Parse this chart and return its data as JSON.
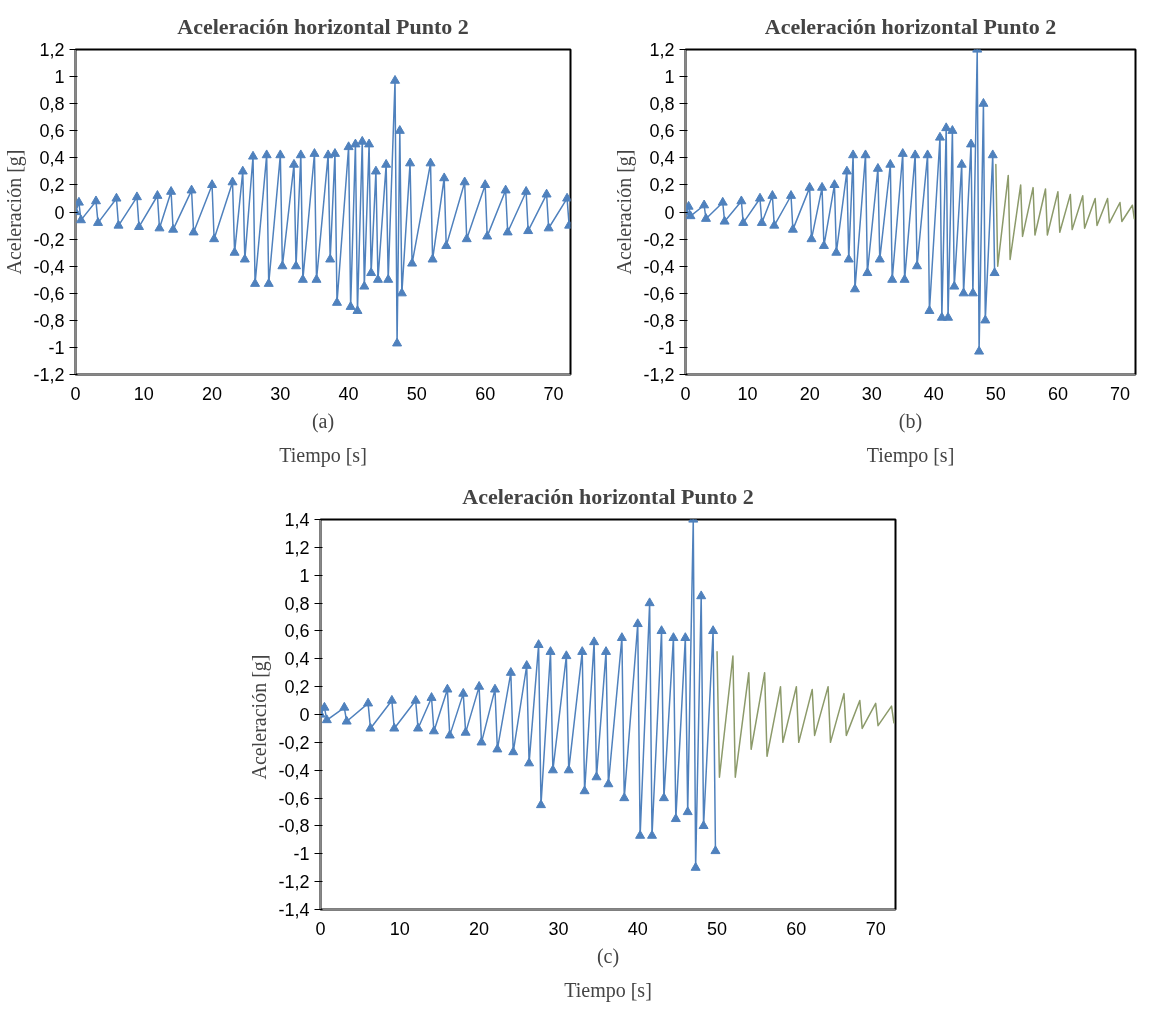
{
  "chart_data": [
    {
      "type": "line",
      "title": "Aceleración horizontal Punto 2",
      "xlabel": "Tiempo [s]",
      "ylabel": "Aceleración [g]",
      "annotations": [
        "(a)"
      ],
      "xlim": [
        0,
        72.5
      ],
      "ylim": [
        -1.2,
        1.2
      ],
      "xticks": [
        0,
        10,
        20,
        30,
        40,
        50,
        60,
        70
      ],
      "yticks": [
        {
          "value": -1.2,
          "label": "-1,2"
        },
        {
          "value": -1,
          "label": "-1"
        },
        {
          "value": -0.8,
          "label": "-0,8"
        },
        {
          "value": -0.6,
          "label": "-0,6"
        },
        {
          "value": -0.4,
          "label": "-0,4"
        },
        {
          "value": -0.2,
          "label": "-0,2"
        },
        0,
        {
          "value": 0.2,
          "label": "0,2"
        },
        {
          "value": 0.4,
          "label": "0,4"
        },
        {
          "value": 0.6,
          "label": "0,6"
        },
        {
          "value": 0.8,
          "label": "0,8"
        },
        1,
        {
          "value": 1.2,
          "label": "1,2"
        }
      ],
      "marker": "triangle",
      "series": [
        {
          "color": "#4f81bd",
          "x": [
            0,
            0.5,
            0.8,
            3,
            3.3,
            6,
            6.3,
            9,
            9.3,
            12,
            12.3,
            14,
            14.3,
            17,
            17.3,
            20,
            20.3,
            23,
            23.3,
            24.5,
            24.8,
            26,
            26.3,
            28,
            28.3,
            30,
            30.3,
            32,
            32.3,
            33,
            33.3,
            35,
            35.3,
            37,
            37.3,
            38,
            38.3,
            40,
            40.3,
            41,
            41.3,
            42,
            42.3,
            43,
            43.3,
            44,
            44.3,
            45.5,
            45.8,
            46.8,
            47.1,
            47.5,
            47.8,
            49,
            49.3,
            52,
            52.3,
            54,
            54.3,
            57,
            57.3,
            60,
            60.3,
            63,
            63.3,
            66,
            66.3,
            69,
            69.3,
            72,
            72.3
          ],
          "values": [
            0,
            0.07,
            -0.06,
            0.08,
            -0.08,
            0.1,
            -0.1,
            0.11,
            -0.11,
            0.12,
            -0.12,
            0.15,
            -0.13,
            0.16,
            -0.15,
            0.2,
            -0.2,
            0.22,
            -0.3,
            0.3,
            -0.35,
            0.41,
            -0.53,
            0.42,
            -0.53,
            0.42,
            -0.4,
            0.35,
            -0.4,
            0.42,
            -0.5,
            0.43,
            -0.5,
            0.42,
            -0.35,
            0.43,
            -0.67,
            0.48,
            -0.7,
            0.5,
            -0.73,
            0.52,
            -0.55,
            0.5,
            -0.45,
            0.3,
            -0.5,
            0.35,
            -0.5,
            0.97,
            -0.97,
            0.6,
            -0.6,
            0.36,
            -0.38,
            0.36,
            -0.35,
            0.25,
            -0.25,
            0.22,
            -0.2,
            0.2,
            -0.18,
            0.16,
            -0.15,
            0.15,
            -0.14,
            0.13,
            -0.12,
            0.1,
            -0.1
          ]
        }
      ]
    },
    {
      "type": "line",
      "title": "Aceleración horizontal Punto 2",
      "xlabel": "Tiempo [s]",
      "ylabel": "Aceleración [g]",
      "annotations": [
        "(b)"
      ],
      "xlim": [
        0,
        72.5
      ],
      "ylim": [
        -1.2,
        1.2
      ],
      "xticks": [
        0,
        10,
        20,
        30,
        40,
        50,
        60,
        70
      ],
      "yticks": [
        {
          "value": -1.2,
          "label": "-1,2"
        },
        {
          "value": -1,
          "label": "-1"
        },
        {
          "value": -0.8,
          "label": "-0,8"
        },
        {
          "value": -0.6,
          "label": "-0,6"
        },
        {
          "value": -0.4,
          "label": "-0,4"
        },
        {
          "value": -0.2,
          "label": "-0,2"
        },
        0,
        {
          "value": 0.2,
          "label": "0,2"
        },
        {
          "value": 0.4,
          "label": "0,4"
        },
        {
          "value": 0.6,
          "label": "0,6"
        },
        {
          "value": 0.8,
          "label": "0,8"
        },
        1,
        {
          "value": 1.2,
          "label": "1,2"
        }
      ],
      "marker": "triangle",
      "series": [
        {
          "color": "#4f81bd",
          "x": [
            0,
            0.5,
            0.8,
            3,
            3.3,
            6,
            6.3,
            9,
            9.3,
            12,
            12.3,
            14,
            14.3,
            17,
            17.3,
            20,
            20.3,
            22,
            22.3,
            24,
            24.3,
            26,
            26.3,
            27,
            27.3,
            29,
            29.3,
            31,
            31.3,
            33,
            33.3,
            35,
            35.3,
            37,
            37.3,
            39,
            39.3,
            41,
            41.3,
            42,
            42.3,
            43,
            43.3,
            44.5,
            44.8,
            46,
            46.3,
            47,
            47.3,
            48,
            48.3,
            49.5,
            49.8
          ],
          "values": [
            0,
            0.04,
            -0.03,
            0.05,
            -0.05,
            0.07,
            -0.07,
            0.08,
            -0.08,
            0.1,
            -0.08,
            0.12,
            -0.1,
            0.12,
            -0.13,
            0.18,
            -0.2,
            0.18,
            -0.25,
            0.2,
            -0.3,
            0.3,
            -0.35,
            0.42,
            -0.57,
            0.42,
            -0.45,
            0.32,
            -0.35,
            0.35,
            -0.5,
            0.43,
            -0.5,
            0.42,
            -0.4,
            0.42,
            -0.73,
            0.55,
            -0.78,
            0.62,
            -0.78,
            0.6,
            -0.55,
            0.35,
            -0.6,
            0.5,
            -0.6,
            1.2,
            -1.03,
            0.8,
            -0.8,
            0.42,
            -0.45
          ]
        },
        {
          "color": "#8c9a6a",
          "marker": "none",
          "x": [
            50,
            50.3,
            52,
            52.3,
            54,
            54.3,
            56,
            56.3,
            58,
            58.3,
            60,
            60.3,
            62,
            62.3,
            64,
            64.3,
            66,
            66.3,
            68,
            68.3,
            70,
            70.3,
            72,
            72.3
          ],
          "values": [
            0.35,
            -0.4,
            0.27,
            -0.35,
            0.2,
            -0.18,
            0.18,
            -0.17,
            0.17,
            -0.17,
            0.15,
            -0.15,
            0.13,
            -0.13,
            0.12,
            -0.12,
            0.1,
            -0.1,
            0.1,
            -0.08,
            0.07,
            -0.07,
            0.05,
            -0.05
          ]
        }
      ]
    },
    {
      "type": "line",
      "title": "Aceleración horizontal Punto 2",
      "xlabel": "Tiempo [s]",
      "ylabel": "Aceleración  [g]",
      "annotations": [
        "(c)"
      ],
      "xlim": [
        0,
        72.5
      ],
      "ylim": [
        -1.4,
        1.4
      ],
      "xticks": [
        0,
        10,
        20,
        30,
        40,
        50,
        60,
        70
      ],
      "yticks": [
        {
          "value": -1.4,
          "label": "-1,4"
        },
        {
          "value": -1.2,
          "label": "-1,2"
        },
        {
          "value": -1,
          "label": "-1"
        },
        {
          "value": -0.8,
          "label": "-0,8"
        },
        {
          "value": -0.6,
          "label": "-0,6"
        },
        {
          "value": -0.4,
          "label": "-0,4"
        },
        {
          "value": -0.2,
          "label": "-0,2"
        },
        0,
        {
          "value": 0.2,
          "label": "0,2"
        },
        {
          "value": 0.4,
          "label": "0,4"
        },
        {
          "value": 0.6,
          "label": "0,6"
        },
        {
          "value": 0.8,
          "label": "0,8"
        },
        1,
        {
          "value": 1.2,
          "label": "1,2"
        },
        {
          "value": 1.4,
          "label": "1,4"
        }
      ],
      "marker": "triangle",
      "series": [
        {
          "color": "#4f81bd",
          "x": [
            0,
            0.5,
            0.8,
            3,
            3.3,
            6,
            6.3,
            9,
            9.3,
            12,
            12.3,
            14,
            14.3,
            16,
            16.3,
            18,
            18.3,
            20,
            20.3,
            22,
            22.3,
            24,
            24.3,
            26,
            26.3,
            27.5,
            27.8,
            29,
            29.3,
            31,
            31.3,
            33,
            33.3,
            34.5,
            34.8,
            36,
            36.3,
            38,
            38.3,
            40,
            40.3,
            41.5,
            41.8,
            43,
            43.3,
            44.5,
            44.8,
            46,
            46.3,
            47,
            47.3,
            48,
            48.3,
            49.5,
            49.8
          ],
          "values": [
            0,
            0.05,
            -0.04,
            0.05,
            -0.05,
            0.08,
            -0.1,
            0.1,
            -0.1,
            0.1,
            -0.1,
            0.12,
            -0.12,
            0.18,
            -0.15,
            0.15,
            -0.13,
            0.2,
            -0.2,
            0.18,
            -0.25,
            0.3,
            -0.27,
            0.35,
            -0.35,
            0.5,
            -0.65,
            0.45,
            -0.4,
            0.42,
            -0.4,
            0.45,
            -0.55,
            0.52,
            -0.45,
            0.45,
            -0.5,
            0.55,
            -0.6,
            0.65,
            -0.87,
            0.8,
            -0.87,
            0.6,
            -0.6,
            0.55,
            -0.75,
            0.55,
            -0.7,
            1.4,
            -1.1,
            0.85,
            -0.8,
            0.6,
            -0.98
          ]
        },
        {
          "color": "#8c9a6a",
          "marker": "none",
          "x": [
            50,
            50.3,
            52,
            52.3,
            54,
            54.3,
            56,
            56.3,
            58,
            58.3,
            60,
            60.3,
            62,
            62.3,
            64,
            64.3,
            66,
            66.3,
            68,
            68.3,
            70,
            70.3,
            72,
            72.3
          ],
          "values": [
            0.45,
            -0.45,
            0.42,
            -0.45,
            0.3,
            -0.25,
            0.3,
            -0.3,
            0.2,
            -0.2,
            0.2,
            -0.2,
            0.18,
            -0.15,
            0.2,
            -0.2,
            0.15,
            -0.15,
            0.1,
            -0.1,
            0.08,
            -0.08,
            0.06,
            -0.06
          ]
        }
      ]
    }
  ]
}
